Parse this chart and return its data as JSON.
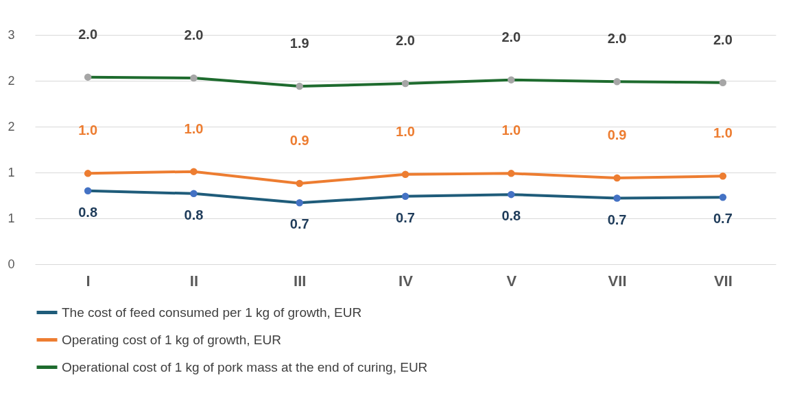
{
  "chart_data": {
    "type": "line",
    "categories": [
      "I",
      "II",
      "III",
      "IV",
      "V",
      "VII",
      "VII"
    ],
    "series": [
      {
        "name": "The cost of feed consumed per 1 kg of growth, EUR",
        "color": "#1f5c7a",
        "values": [
          0.8,
          0.77,
          0.67,
          0.74,
          0.76,
          0.72,
          0.73
        ],
        "value_labels": [
          "0.8",
          "0.8",
          "0.7",
          "0.7",
          "0.8",
          "0.7",
          "0.7"
        ]
      },
      {
        "name": " Operating cost of 1 kg of growth, EUR",
        "color": "#ed7d31",
        "values": [
          0.99,
          1.01,
          0.88,
          0.98,
          0.99,
          0.94,
          0.96
        ],
        "value_labels": [
          "1.0",
          "1.0",
          "0.9",
          "1.0",
          "1.0",
          "0.9",
          "1.0"
        ]
      },
      {
        "name": "Operational cost of 1 kg of pork mass at the end of curing, EUR",
        "color": "#1e6b2e",
        "values": [
          2.04,
          2.03,
          1.94,
          1.97,
          2.01,
          1.99,
          1.98
        ],
        "value_labels": [
          "2.0",
          "2.0",
          "1.9",
          "2.0",
          "2.0",
          "2.0",
          "2.0"
        ]
      }
    ],
    "ylim": [
      0,
      2.5
    ],
    "yticks": [
      {
        "value": 0,
        "label": "0"
      },
      {
        "value": 0.5,
        "label": "1"
      },
      {
        "value": 1,
        "label": "1"
      },
      {
        "value": 1.5,
        "label": "2"
      },
      {
        "value": 2,
        "label": "2"
      },
      {
        "value": 2.5,
        "label": "3"
      }
    ],
    "grid": "y",
    "legend": "bottom",
    "marker": "circle",
    "line_style": "solid"
  }
}
